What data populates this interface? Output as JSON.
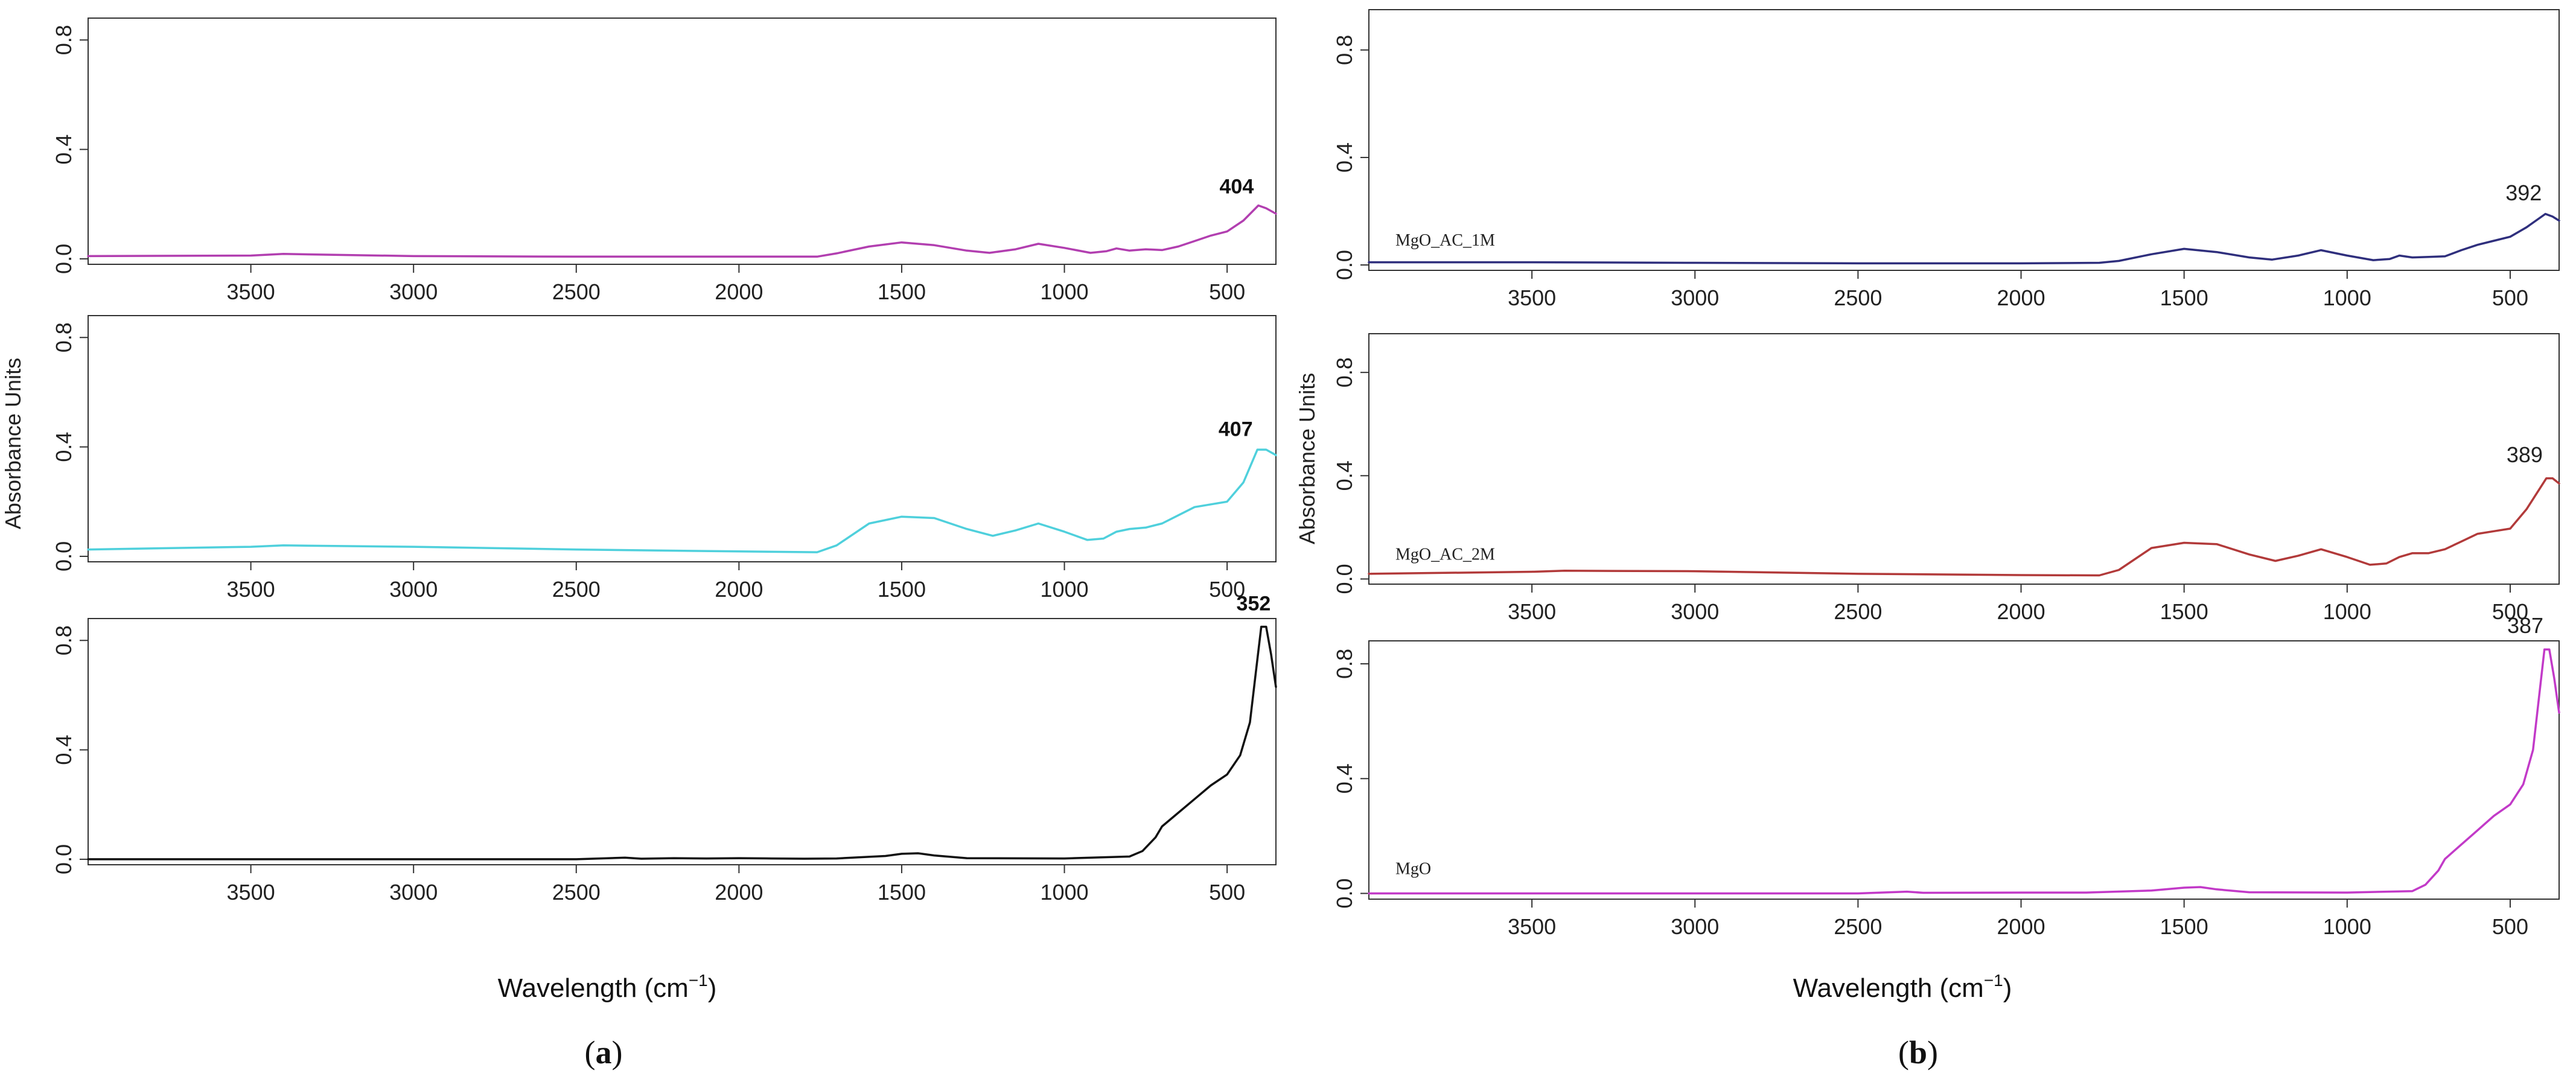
{
  "figure": {
    "x_axis_label_a": "Wavelength (cm",
    "x_axis_label_a_sup": "−1",
    "x_axis_label_a_close": ")",
    "x_axis_label_b": "Wavelength (cm",
    "x_axis_label_b_sup": "−1",
    "x_axis_label_b_close": ")",
    "y_axis_label": "Absorbance Units",
    "panel_a_open": "(",
    "panel_a_letter": "a",
    "panel_a_close": ")",
    "panel_b_open": "(",
    "panel_b_letter": "b",
    "panel_b_close": ")"
  },
  "chart_data": [
    {
      "panel": "a",
      "position": "top",
      "type": "line",
      "xlabel": "",
      "ylabel": "",
      "xlim": [
        4000,
        350
      ],
      "ylim": [
        -0.02,
        0.88
      ],
      "xticks": [
        "3500",
        "3000",
        "2500",
        "2000",
        "1500",
        "1000",
        "500"
      ],
      "yticks": [
        "0.0",
        "0.4",
        "0.8"
      ],
      "series": [
        {
          "name": "",
          "color": "#b23fb0",
          "x": [
            4000,
            3500,
            3400,
            3000,
            2500,
            2000,
            1760,
            1700,
            1600,
            1500,
            1400,
            1300,
            1230,
            1150,
            1080,
            1000,
            920,
            870,
            840,
            800,
            750,
            700,
            650,
            600,
            550,
            500,
            450,
            404,
            380,
            350
          ],
          "y": [
            0.01,
            0.012,
            0.018,
            0.01,
            0.008,
            0.008,
            0.008,
            0.02,
            0.045,
            0.06,
            0.05,
            0.03,
            0.022,
            0.035,
            0.055,
            0.04,
            0.022,
            0.028,
            0.038,
            0.03,
            0.035,
            0.032,
            0.045,
            0.065,
            0.085,
            0.1,
            0.14,
            0.195,
            0.185,
            0.165
          ]
        }
      ],
      "annotations": [
        {
          "text": "404",
          "x": 404,
          "y": 0.2
        }
      ],
      "sample_label": ""
    },
    {
      "panel": "a",
      "position": "middle",
      "type": "line",
      "xlabel": "",
      "ylabel": "Absorbance Units",
      "xlim": [
        4000,
        350
      ],
      "ylim": [
        -0.02,
        0.88
      ],
      "xticks": [
        "3500",
        "3000",
        "2500",
        "2000",
        "1500",
        "1000",
        "500"
      ],
      "yticks": [
        "0.0",
        "0.4",
        "0.8"
      ],
      "series": [
        {
          "name": "",
          "color": "#4fd0dc",
          "x": [
            4000,
            3500,
            3400,
            3000,
            2500,
            2000,
            1760,
            1700,
            1600,
            1500,
            1400,
            1300,
            1220,
            1150,
            1080,
            1000,
            930,
            880,
            840,
            800,
            750,
            700,
            650,
            600,
            550,
            500,
            450,
            407,
            380,
            350
          ],
          "y": [
            0.025,
            0.035,
            0.04,
            0.035,
            0.025,
            0.018,
            0.015,
            0.04,
            0.12,
            0.145,
            0.14,
            0.1,
            0.075,
            0.095,
            0.12,
            0.09,
            0.06,
            0.065,
            0.09,
            0.1,
            0.105,
            0.12,
            0.15,
            0.18,
            0.19,
            0.2,
            0.27,
            0.39,
            0.39,
            0.37
          ]
        }
      ],
      "annotations": [
        {
          "text": "407",
          "x": 407,
          "y": 0.4
        }
      ],
      "sample_label": ""
    },
    {
      "panel": "a",
      "position": "bottom",
      "type": "line",
      "xlabel": "Wavelength (cm−1)",
      "ylabel": "",
      "xlim": [
        4000,
        350
      ],
      "ylim": [
        -0.02,
        0.88
      ],
      "xticks": [
        "3500",
        "3000",
        "2500",
        "2000",
        "1500",
        "1000",
        "500"
      ],
      "yticks": [
        "0.0",
        "0.4",
        "0.8"
      ],
      "series": [
        {
          "name": "",
          "color": "#111111",
          "x": [
            4000,
            3500,
            3000,
            2500,
            2350,
            2300,
            2200,
            2100,
            2000,
            1900,
            1800,
            1700,
            1550,
            1500,
            1450,
            1400,
            1300,
            1000,
            800,
            760,
            720,
            700,
            650,
            600,
            550,
            500,
            460,
            430,
            410,
            395,
            380,
            365,
            350
          ],
          "y": [
            0.0,
            0.0,
            0.0,
            0.0,
            0.006,
            0.002,
            0.004,
            0.003,
            0.004,
            0.003,
            0.002,
            0.003,
            0.012,
            0.02,
            0.022,
            0.014,
            0.004,
            0.003,
            0.01,
            0.03,
            0.08,
            0.12,
            0.17,
            0.22,
            0.27,
            0.31,
            0.38,
            0.5,
            0.7,
            0.85,
            0.85,
            0.75,
            0.63
          ]
        }
      ],
      "annotations": [
        {
          "text": "352",
          "x": 352,
          "y": 0.87
        }
      ],
      "sample_label": ""
    },
    {
      "panel": "b",
      "position": "top",
      "type": "line",
      "xlabel": "",
      "ylabel": "",
      "xlim": [
        4000,
        350
      ],
      "ylim": [
        -0.02,
        0.95
      ],
      "xticks": [
        "3500",
        "3000",
        "2500",
        "2000",
        "1500",
        "1000",
        "500"
      ],
      "yticks": [
        "0.0",
        "0.4",
        "0.8"
      ],
      "series": [
        {
          "name": "MgO_AC_1M",
          "color": "#2f2f7d",
          "x": [
            4000,
            3500,
            3000,
            2500,
            2000,
            1760,
            1700,
            1600,
            1500,
            1400,
            1300,
            1230,
            1150,
            1080,
            1000,
            920,
            870,
            840,
            800,
            750,
            700,
            650,
            600,
            550,
            500,
            450,
            392,
            370,
            350
          ],
          "y": [
            0.01,
            0.01,
            0.008,
            0.006,
            0.006,
            0.008,
            0.015,
            0.04,
            0.06,
            0.048,
            0.028,
            0.02,
            0.035,
            0.055,
            0.035,
            0.018,
            0.022,
            0.035,
            0.028,
            0.03,
            0.032,
            0.055,
            0.075,
            0.09,
            0.105,
            0.14,
            0.19,
            0.18,
            0.165
          ]
        }
      ],
      "annotations": [
        {
          "text": "392",
          "x": 392,
          "y": 0.2
        }
      ],
      "sample_label": "MgO_AC_1M"
    },
    {
      "panel": "b",
      "position": "middle",
      "type": "line",
      "xlabel": "",
      "ylabel": "Absorbance Units",
      "xlim": [
        4000,
        350
      ],
      "ylim": [
        -0.02,
        0.95
      ],
      "xticks": [
        "3500",
        "3000",
        "2500",
        "2000",
        "1500",
        "1000",
        "500"
      ],
      "yticks": [
        "0.0",
        "0.4",
        "0.8"
      ],
      "series": [
        {
          "name": "MgO_AC_2M",
          "color": "#b23a3a",
          "x": [
            4000,
            3500,
            3400,
            3000,
            2500,
            2000,
            1760,
            1700,
            1600,
            1500,
            1400,
            1300,
            1220,
            1150,
            1080,
            1000,
            930,
            880,
            840,
            800,
            750,
            700,
            650,
            600,
            550,
            500,
            450,
            389,
            370,
            350
          ],
          "y": [
            0.02,
            0.028,
            0.032,
            0.03,
            0.02,
            0.015,
            0.014,
            0.035,
            0.12,
            0.14,
            0.135,
            0.095,
            0.07,
            0.09,
            0.115,
            0.085,
            0.055,
            0.06,
            0.085,
            0.1,
            0.1,
            0.115,
            0.145,
            0.175,
            0.185,
            0.195,
            0.27,
            0.39,
            0.39,
            0.37
          ]
        }
      ],
      "annotations": [
        {
          "text": "389",
          "x": 389,
          "y": 0.41
        }
      ],
      "sample_label": "MgO_AC_2M"
    },
    {
      "panel": "b",
      "position": "bottom",
      "type": "line",
      "xlabel": "Wavelength (cm −1)",
      "ylabel": "",
      "xlim": [
        4000,
        350
      ],
      "ylim": [
        -0.02,
        0.88
      ],
      "xticks": [
        "3500",
        "3000",
        "2500",
        "2000",
        "1500",
        "1000",
        "500"
      ],
      "yticks": [
        "0.0",
        "0.4",
        "0.8"
      ],
      "series": [
        {
          "name": "MgO",
          "color": "#c23ac8",
          "x": [
            4000,
            3500,
            3000,
            2500,
            2350,
            2300,
            2000,
            1800,
            1600,
            1500,
            1450,
            1400,
            1300,
            1000,
            800,
            760,
            720,
            700,
            650,
            600,
            550,
            500,
            460,
            430,
            410,
            395,
            380,
            365,
            350
          ],
          "y": [
            0.0,
            0.0,
            0.0,
            0.0,
            0.006,
            0.002,
            0.003,
            0.003,
            0.01,
            0.02,
            0.022,
            0.014,
            0.004,
            0.003,
            0.008,
            0.03,
            0.08,
            0.12,
            0.17,
            0.22,
            0.27,
            0.31,
            0.38,
            0.5,
            0.7,
            0.85,
            0.85,
            0.75,
            0.63
          ]
        }
      ],
      "annotations": [
        {
          "text": "387",
          "x": 387,
          "y": 0.87
        }
      ],
      "sample_label": "MgO"
    }
  ]
}
